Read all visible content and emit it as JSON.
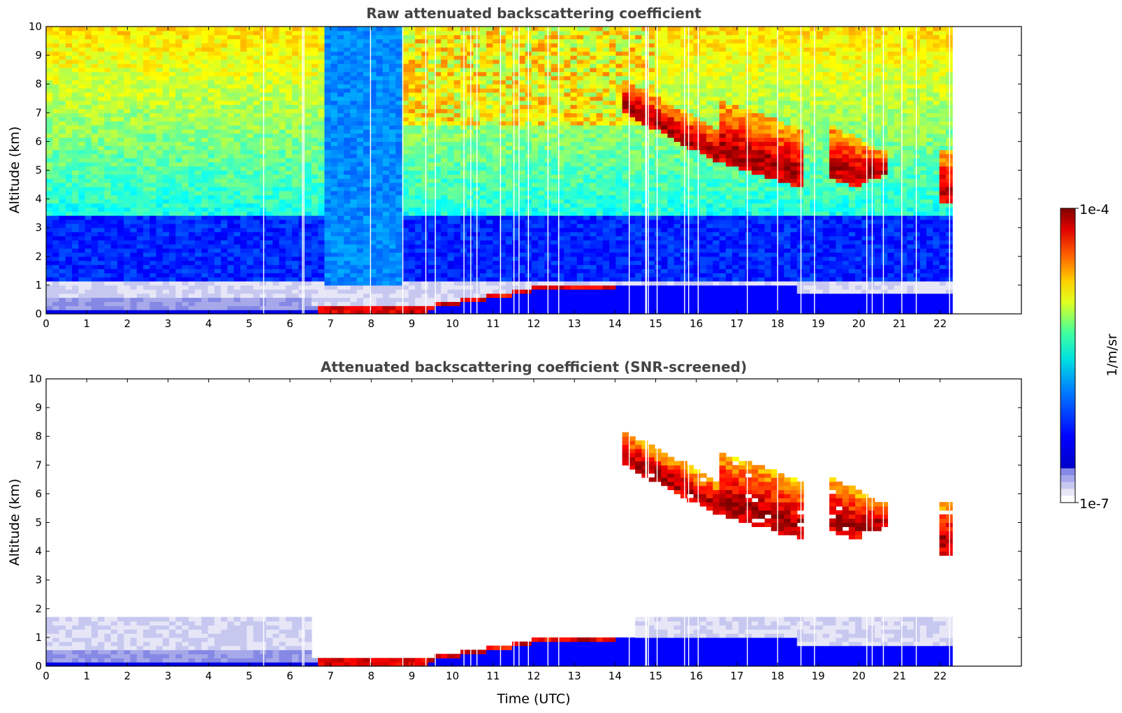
{
  "chart_data": [
    {
      "type": "heatmap",
      "title": "Raw attenuated backscattering coefficient",
      "xlabel": "",
      "ylabel": "Altitude (km)",
      "xlim": [
        0,
        24
      ],
      "ylim": [
        0,
        10
      ],
      "data_end_time": 22.3,
      "xticks": [
        "0",
        "1",
        "2",
        "3",
        "4",
        "5",
        "6",
        "7",
        "8",
        "9",
        "10",
        "11",
        "12",
        "13",
        "14",
        "15",
        "16",
        "17",
        "18",
        "19",
        "20",
        "21",
        "22"
      ],
      "yticks": [
        "0",
        "1",
        "2",
        "3",
        "4",
        "5",
        "6",
        "7",
        "8",
        "9",
        "10"
      ],
      "features": [
        {
          "name": "boundary layer",
          "time_range": [
            0,
            22.3
          ],
          "altitude_range": [
            0,
            1.0
          ],
          "level": "low"
        },
        {
          "name": "near-surface aerosol layer",
          "time_range": [
            6.7,
            9.5
          ],
          "altitude_range": [
            0,
            0.3
          ],
          "level": "high"
        },
        {
          "name": "cirrus cloud",
          "time_range": [
            14.5,
            22.3
          ],
          "altitude_range": [
            4,
            7.5
          ],
          "level": "high"
        }
      ]
    },
    {
      "type": "heatmap",
      "title": "Attenuated backscattering coefficient (SNR-screened)",
      "xlabel": "Time (UTC)",
      "ylabel": "Altitude (km)",
      "xlim": [
        0,
        24
      ],
      "ylim": [
        0,
        10
      ],
      "data_end_time": 22.3,
      "xticks": [
        "0",
        "1",
        "2",
        "3",
        "4",
        "5",
        "6",
        "7",
        "8",
        "9",
        "10",
        "11",
        "12",
        "13",
        "14",
        "15",
        "16",
        "17",
        "18",
        "19",
        "20",
        "21",
        "22"
      ],
      "yticks": [
        "0",
        "1",
        "2",
        "3",
        "4",
        "5",
        "6",
        "7",
        "8",
        "9",
        "10"
      ],
      "features": [
        {
          "name": "boundary layer",
          "time_range": [
            0,
            22.3
          ],
          "altitude_range": [
            0,
            1.8
          ],
          "level": "low"
        },
        {
          "name": "cirrus cloud",
          "time_range": [
            14.5,
            22.3
          ],
          "altitude_range": [
            4,
            8
          ],
          "level": "high"
        }
      ]
    }
  ],
  "colorbar": {
    "max_label": "1e-4",
    "min_label": "1e-7",
    "unit_label": "1/m/sr",
    "colormap": "jet",
    "scale": "log",
    "range": [
      1e-07,
      0.0001
    ],
    "low_colors": [
      "#ffffff",
      "#e6e6f7",
      "#c7c8f0",
      "#a6a8ea",
      "#8588e4"
    ]
  }
}
